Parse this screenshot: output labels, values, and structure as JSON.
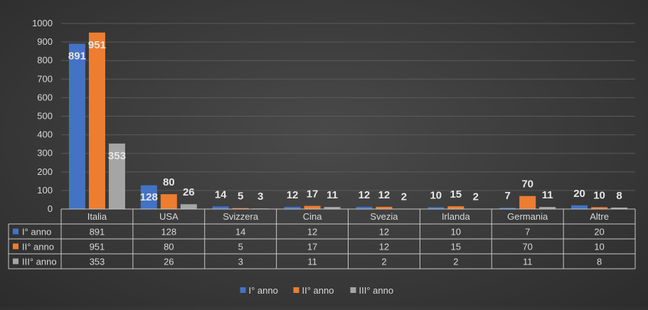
{
  "chart_data": {
    "type": "bar",
    "categories": [
      "Italia",
      "USA",
      "Svizzera",
      "Cina",
      "Svezia",
      "Irlanda",
      "Germania",
      "Altre"
    ],
    "series": [
      {
        "name": "I° anno",
        "color": "#4472c4",
        "values": [
          891,
          128,
          14,
          12,
          12,
          10,
          7,
          20
        ]
      },
      {
        "name": "II° anno",
        "color": "#ed7d31",
        "values": [
          951,
          80,
          5,
          17,
          12,
          15,
          70,
          10
        ]
      },
      {
        "name": "III° anno",
        "color": "#a5a5a5",
        "values": [
          353,
          26,
          3,
          11,
          2,
          2,
          11,
          8
        ]
      }
    ],
    "ylim": [
      0,
      1000
    ],
    "yticks": [
      0,
      100,
      200,
      300,
      400,
      500,
      600,
      700,
      800,
      900,
      1000
    ],
    "grid": true,
    "data_table": true,
    "legend": "bottom"
  }
}
